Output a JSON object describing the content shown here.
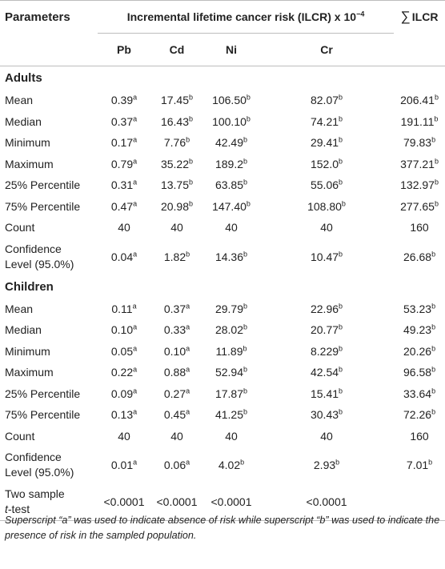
{
  "header": {
    "parameters": "Parameters",
    "span_title": "Incremental lifetime cancer risk (ILCR) x 10",
    "span_exp": "−4",
    "sum_symbol": "∑",
    "sum_label": "ILCR",
    "columns": [
      "Pb",
      "Cd",
      "Ni",
      "Cr"
    ]
  },
  "adults": {
    "title": "Adults",
    "rows": [
      {
        "label": "Mean",
        "cells": [
          [
            "0.39",
            "a"
          ],
          [
            "17.45",
            "b"
          ],
          [
            "106.50",
            "b"
          ],
          [
            "82.07",
            "b"
          ],
          [
            "206.41",
            "b"
          ]
        ]
      },
      {
        "label": "Median",
        "cells": [
          [
            "0.37",
            "a"
          ],
          [
            "16.43",
            "b"
          ],
          [
            "100.10",
            "b"
          ],
          [
            "74.21",
            "b"
          ],
          [
            "191.11",
            "b"
          ]
        ]
      },
      {
        "label": "Minimum",
        "cells": [
          [
            "0.17",
            "a"
          ],
          [
            "7.76",
            "b"
          ],
          [
            "42.49",
            "b"
          ],
          [
            "29.41",
            "b"
          ],
          [
            "79.83",
            "b"
          ]
        ]
      },
      {
        "label": "Maximum",
        "cells": [
          [
            "0.79",
            "a"
          ],
          [
            "35.22",
            "b"
          ],
          [
            "189.2",
            "b"
          ],
          [
            "152.0",
            "b"
          ],
          [
            "377.21",
            "b"
          ]
        ]
      },
      {
        "label": "25% Percentile",
        "cells": [
          [
            "0.31",
            "a"
          ],
          [
            "13.75",
            "b"
          ],
          [
            "63.85",
            "b"
          ],
          [
            "55.06",
            "b"
          ],
          [
            "132.97",
            "b"
          ]
        ]
      },
      {
        "label": "75% Percentile",
        "cells": [
          [
            "0.47",
            "a"
          ],
          [
            "20.98",
            "b"
          ],
          [
            "147.40",
            "b"
          ],
          [
            "108.80",
            "b"
          ],
          [
            "277.65",
            "b"
          ]
        ]
      },
      {
        "label": "Count",
        "cells": [
          [
            "40",
            ""
          ],
          [
            "40",
            ""
          ],
          [
            "40",
            ""
          ],
          [
            "40",
            ""
          ],
          [
            "160",
            ""
          ]
        ]
      }
    ],
    "conf": {
      "label1": "Confidence",
      "label2": "Level (95.0%)",
      "cells": [
        [
          "0.04",
          "a"
        ],
        [
          "1.82",
          "b"
        ],
        [
          "14.36",
          "b"
        ],
        [
          "10.47",
          "b"
        ],
        [
          "26.68",
          "b"
        ]
      ]
    }
  },
  "children": {
    "title": "Children",
    "rows": [
      {
        "label": "Mean",
        "cells": [
          [
            "0.11",
            "a"
          ],
          [
            "0.37",
            "a"
          ],
          [
            "29.79",
            "b"
          ],
          [
            "22.96",
            "b"
          ],
          [
            "53.23",
            "b"
          ]
        ]
      },
      {
        "label": "Median",
        "cells": [
          [
            "0.10",
            "a"
          ],
          [
            "0.33",
            "a"
          ],
          [
            "28.02",
            "b"
          ],
          [
            "20.77",
            "b"
          ],
          [
            "49.23",
            "b"
          ]
        ]
      },
      {
        "label": "Minimum",
        "cells": [
          [
            "0.05",
            "a"
          ],
          [
            "0.10",
            "a"
          ],
          [
            "11.89",
            "b"
          ],
          [
            "8.229",
            "b"
          ],
          [
            "20.26",
            "b"
          ]
        ]
      },
      {
        "label": "Maximum",
        "cells": [
          [
            "0.22",
            "a"
          ],
          [
            "0.88",
            "a"
          ],
          [
            "52.94",
            "b"
          ],
          [
            "42.54",
            "b"
          ],
          [
            "96.58",
            "b"
          ]
        ]
      },
      {
        "label": "25% Percentile",
        "cells": [
          [
            "0.09",
            "a"
          ],
          [
            "0.27",
            "a"
          ],
          [
            "17.87",
            "b"
          ],
          [
            "15.41",
            "b"
          ],
          [
            "33.64",
            "b"
          ]
        ]
      },
      {
        "label": "75% Percentile",
        "cells": [
          [
            "0.13",
            "a"
          ],
          [
            "0.45",
            "a"
          ],
          [
            "41.25",
            "b"
          ],
          [
            "30.43",
            "b"
          ],
          [
            "72.26",
            "b"
          ]
        ]
      },
      {
        "label": "Count",
        "cells": [
          [
            "40",
            ""
          ],
          [
            "40",
            ""
          ],
          [
            "40",
            ""
          ],
          [
            "40",
            ""
          ],
          [
            "160",
            ""
          ]
        ]
      }
    ],
    "conf": {
      "label1": "Confidence",
      "label2": "Level (95.0%)",
      "cells": [
        [
          "0.01",
          "a"
        ],
        [
          "0.06",
          "a"
        ],
        [
          "4.02",
          "b"
        ],
        [
          "2.93",
          "b"
        ],
        [
          "7.01",
          "b"
        ]
      ]
    }
  },
  "ttest": {
    "label1": "Two sample",
    "label2_italic": "t",
    "label2_rest": "-test",
    "cells": [
      "<0.0001",
      "<0.0001",
      "<0.0001",
      "<0.0001",
      ""
    ]
  },
  "footnote": "Superscript “a” was used to indicate absence of risk while superscript “b” was used to indicate the presence of risk in the sampled population."
}
